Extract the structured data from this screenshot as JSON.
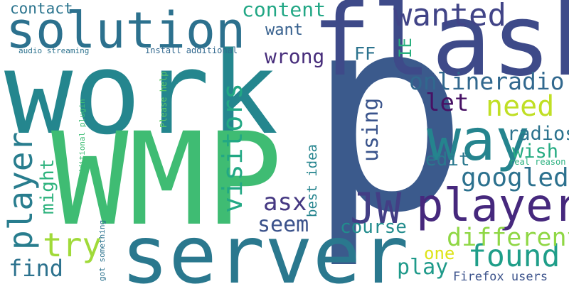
{
  "cloud": {
    "words": [
      {
        "id": "p",
        "text": "p",
        "color": "#3b5a8c"
      },
      {
        "id": "work",
        "text": "work",
        "color": "#24868e"
      },
      {
        "id": "wmp",
        "text": "WMP",
        "color": "#3fbc73"
      },
      {
        "id": "flash",
        "text": "flash",
        "color": "#3e4a89"
      },
      {
        "id": "server",
        "text": "server",
        "color": "#2a788e"
      },
      {
        "id": "solution",
        "text": "solution",
        "color": "#2c718e"
      },
      {
        "id": "player_big",
        "text": "player",
        "color": "#46287d"
      },
      {
        "id": "way",
        "text": "way",
        "color": "#25848e"
      },
      {
        "id": "jw",
        "text": "JW",
        "color": "#433e85"
      },
      {
        "id": "wanted",
        "text": "wanted",
        "color": "#414487"
      },
      {
        "id": "onlineradio",
        "text": "onlineradio",
        "color": "#31688e"
      },
      {
        "id": "need",
        "text": "need",
        "color": "#c0df25"
      },
      {
        "id": "found",
        "text": "found",
        "color": "#1f9e89"
      },
      {
        "id": "different",
        "text": "different",
        "color": "#8fd744"
      },
      {
        "id": "googled",
        "text": "googled",
        "color": "#2c718e"
      },
      {
        "id": "player_left",
        "text": "player",
        "color": "#287d8e"
      },
      {
        "id": "try",
        "text": "try",
        "color": "#a0da39"
      },
      {
        "id": "visitors",
        "text": "visitors",
        "color": "#22a884"
      },
      {
        "id": "content",
        "text": "content",
        "color": "#22a785"
      },
      {
        "id": "wrong",
        "text": "wrong",
        "color": "#472d7b"
      },
      {
        "id": "want",
        "text": "want",
        "color": "#355f8d"
      },
      {
        "id": "contact",
        "text": "contact",
        "color": "#2b748e"
      },
      {
        "id": "ff",
        "text": "FF",
        "color": "#2c738e"
      },
      {
        "id": "ie",
        "text": "IE",
        "color": "#2ab07f"
      },
      {
        "id": "let",
        "text": "let",
        "color": "#471164"
      },
      {
        "id": "radios",
        "text": "radios",
        "color": "#2c738e"
      },
      {
        "id": "wish",
        "text": "wish",
        "color": "#25ab82"
      },
      {
        "id": "edit",
        "text": "edit",
        "color": "#2a788e"
      },
      {
        "id": "using",
        "text": "using",
        "color": "#3a548c"
      },
      {
        "id": "asx",
        "text": "asx",
        "color": "#453882"
      },
      {
        "id": "seem",
        "text": "seem",
        "color": "#3b528b"
      },
      {
        "id": "course",
        "text": "course",
        "color": "#228c8d"
      },
      {
        "id": "play",
        "text": "play",
        "color": "#1f9a8a"
      },
      {
        "id": "one",
        "text": "one",
        "color": "#dde318"
      },
      {
        "id": "find",
        "text": "find",
        "color": "#2c728e"
      },
      {
        "id": "might",
        "text": "might",
        "color": "#2db27d"
      },
      {
        "id": "best_idea",
        "text": "best idea",
        "color": "#25848e"
      },
      {
        "id": "firefox_users",
        "text": "Firefox users",
        "color": "#3b528b"
      },
      {
        "id": "real_reason",
        "text": "real reason",
        "color": "#2ab07f"
      },
      {
        "id": "audio_streaming",
        "text": "audio streaming",
        "color": "#2c728e"
      },
      {
        "id": "install_additional",
        "text": "install additional",
        "color": "#31688e"
      },
      {
        "id": "please_help",
        "text": "Please help",
        "color": "#5ec962"
      },
      {
        "id": "additional_plugin",
        "text": "additional plugin",
        "color": "#3dbc74"
      },
      {
        "id": "got_something",
        "text": "got something",
        "color": "#2c728e"
      }
    ]
  }
}
